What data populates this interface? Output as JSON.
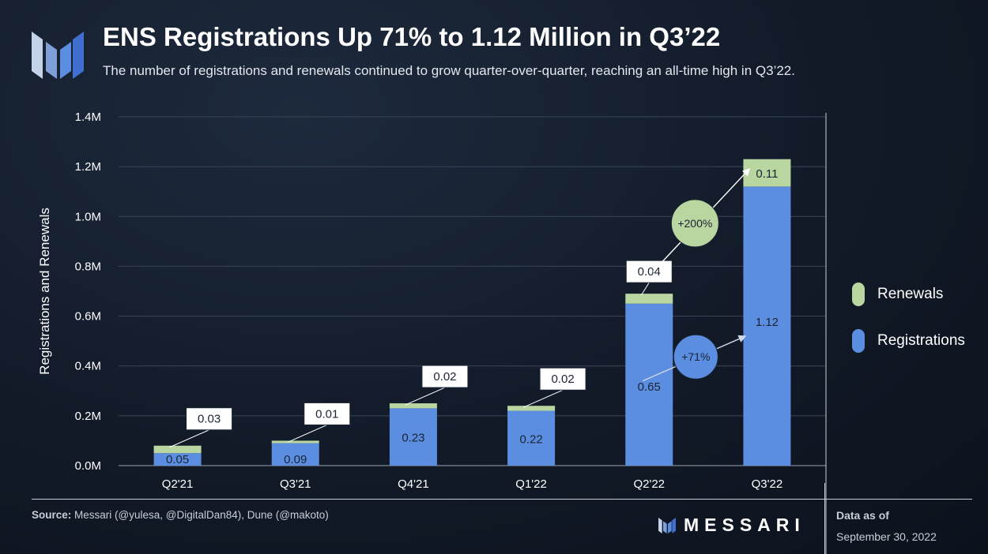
{
  "header": {
    "title": "ENS Registrations Up 71% to 1.12 Million in Q3’22",
    "subtitle": "The number of registrations and renewals continued to grow quarter-over-quarter, reaching an all-time high in Q3’22."
  },
  "chart_data": {
    "type": "bar",
    "stacked": true,
    "title": "ENS Registrations Up 71% to 1.12 Million in Q3’22",
    "ylabel": "Registrations and Renewals",
    "xlabel": "",
    "ylim": [
      0,
      1.4
    ],
    "y_ticks": [
      0,
      0.2,
      0.4,
      0.6,
      0.8,
      1.0,
      1.2,
      1.4
    ],
    "y_tick_labels": [
      "0.0M",
      "0.2M",
      "0.4M",
      "0.6M",
      "0.8M",
      "1.0M",
      "1.2M",
      "1.4M"
    ],
    "grid": true,
    "legend_position": "right",
    "categories": [
      "Q2'21",
      "Q3'21",
      "Q4'21",
      "Q1'22",
      "Q2'22",
      "Q3'22"
    ],
    "series": [
      {
        "name": "Registrations",
        "color": "#5b8ee0",
        "values": [
          0.05,
          0.09,
          0.23,
          0.22,
          0.65,
          1.12
        ],
        "labels": [
          "0.05",
          "0.09",
          "0.23",
          "0.22",
          "0.65",
          "1.12"
        ]
      },
      {
        "name": "Renewals",
        "color": "#b9d5a0",
        "values": [
          0.03,
          0.01,
          0.02,
          0.02,
          0.04,
          0.11
        ],
        "labels": [
          "0.03",
          "0.01",
          "0.02",
          "0.02",
          "0.04",
          "0.11"
        ]
      }
    ],
    "annotations": [
      {
        "text": "+200%",
        "series": "Renewals",
        "from": "Q2'22",
        "to": "Q3'22",
        "color": "#b9d5a0"
      },
      {
        "text": "+71%",
        "series": "Registrations",
        "from": "Q2'22",
        "to": "Q3'22",
        "color": "#5b8ee0"
      }
    ]
  },
  "legend": {
    "items": [
      {
        "label": "Renewals",
        "color": "#b9d5a0"
      },
      {
        "label": "Registrations",
        "color": "#5b8ee0"
      }
    ]
  },
  "footer": {
    "source_label": "Source:",
    "source_text": "Messari (@yulesa, @DigitalDan84), Dune (@makoto)",
    "brand": "MESSARI",
    "as_of_label": "Data as of",
    "as_of_date": "September 30, 2022"
  }
}
